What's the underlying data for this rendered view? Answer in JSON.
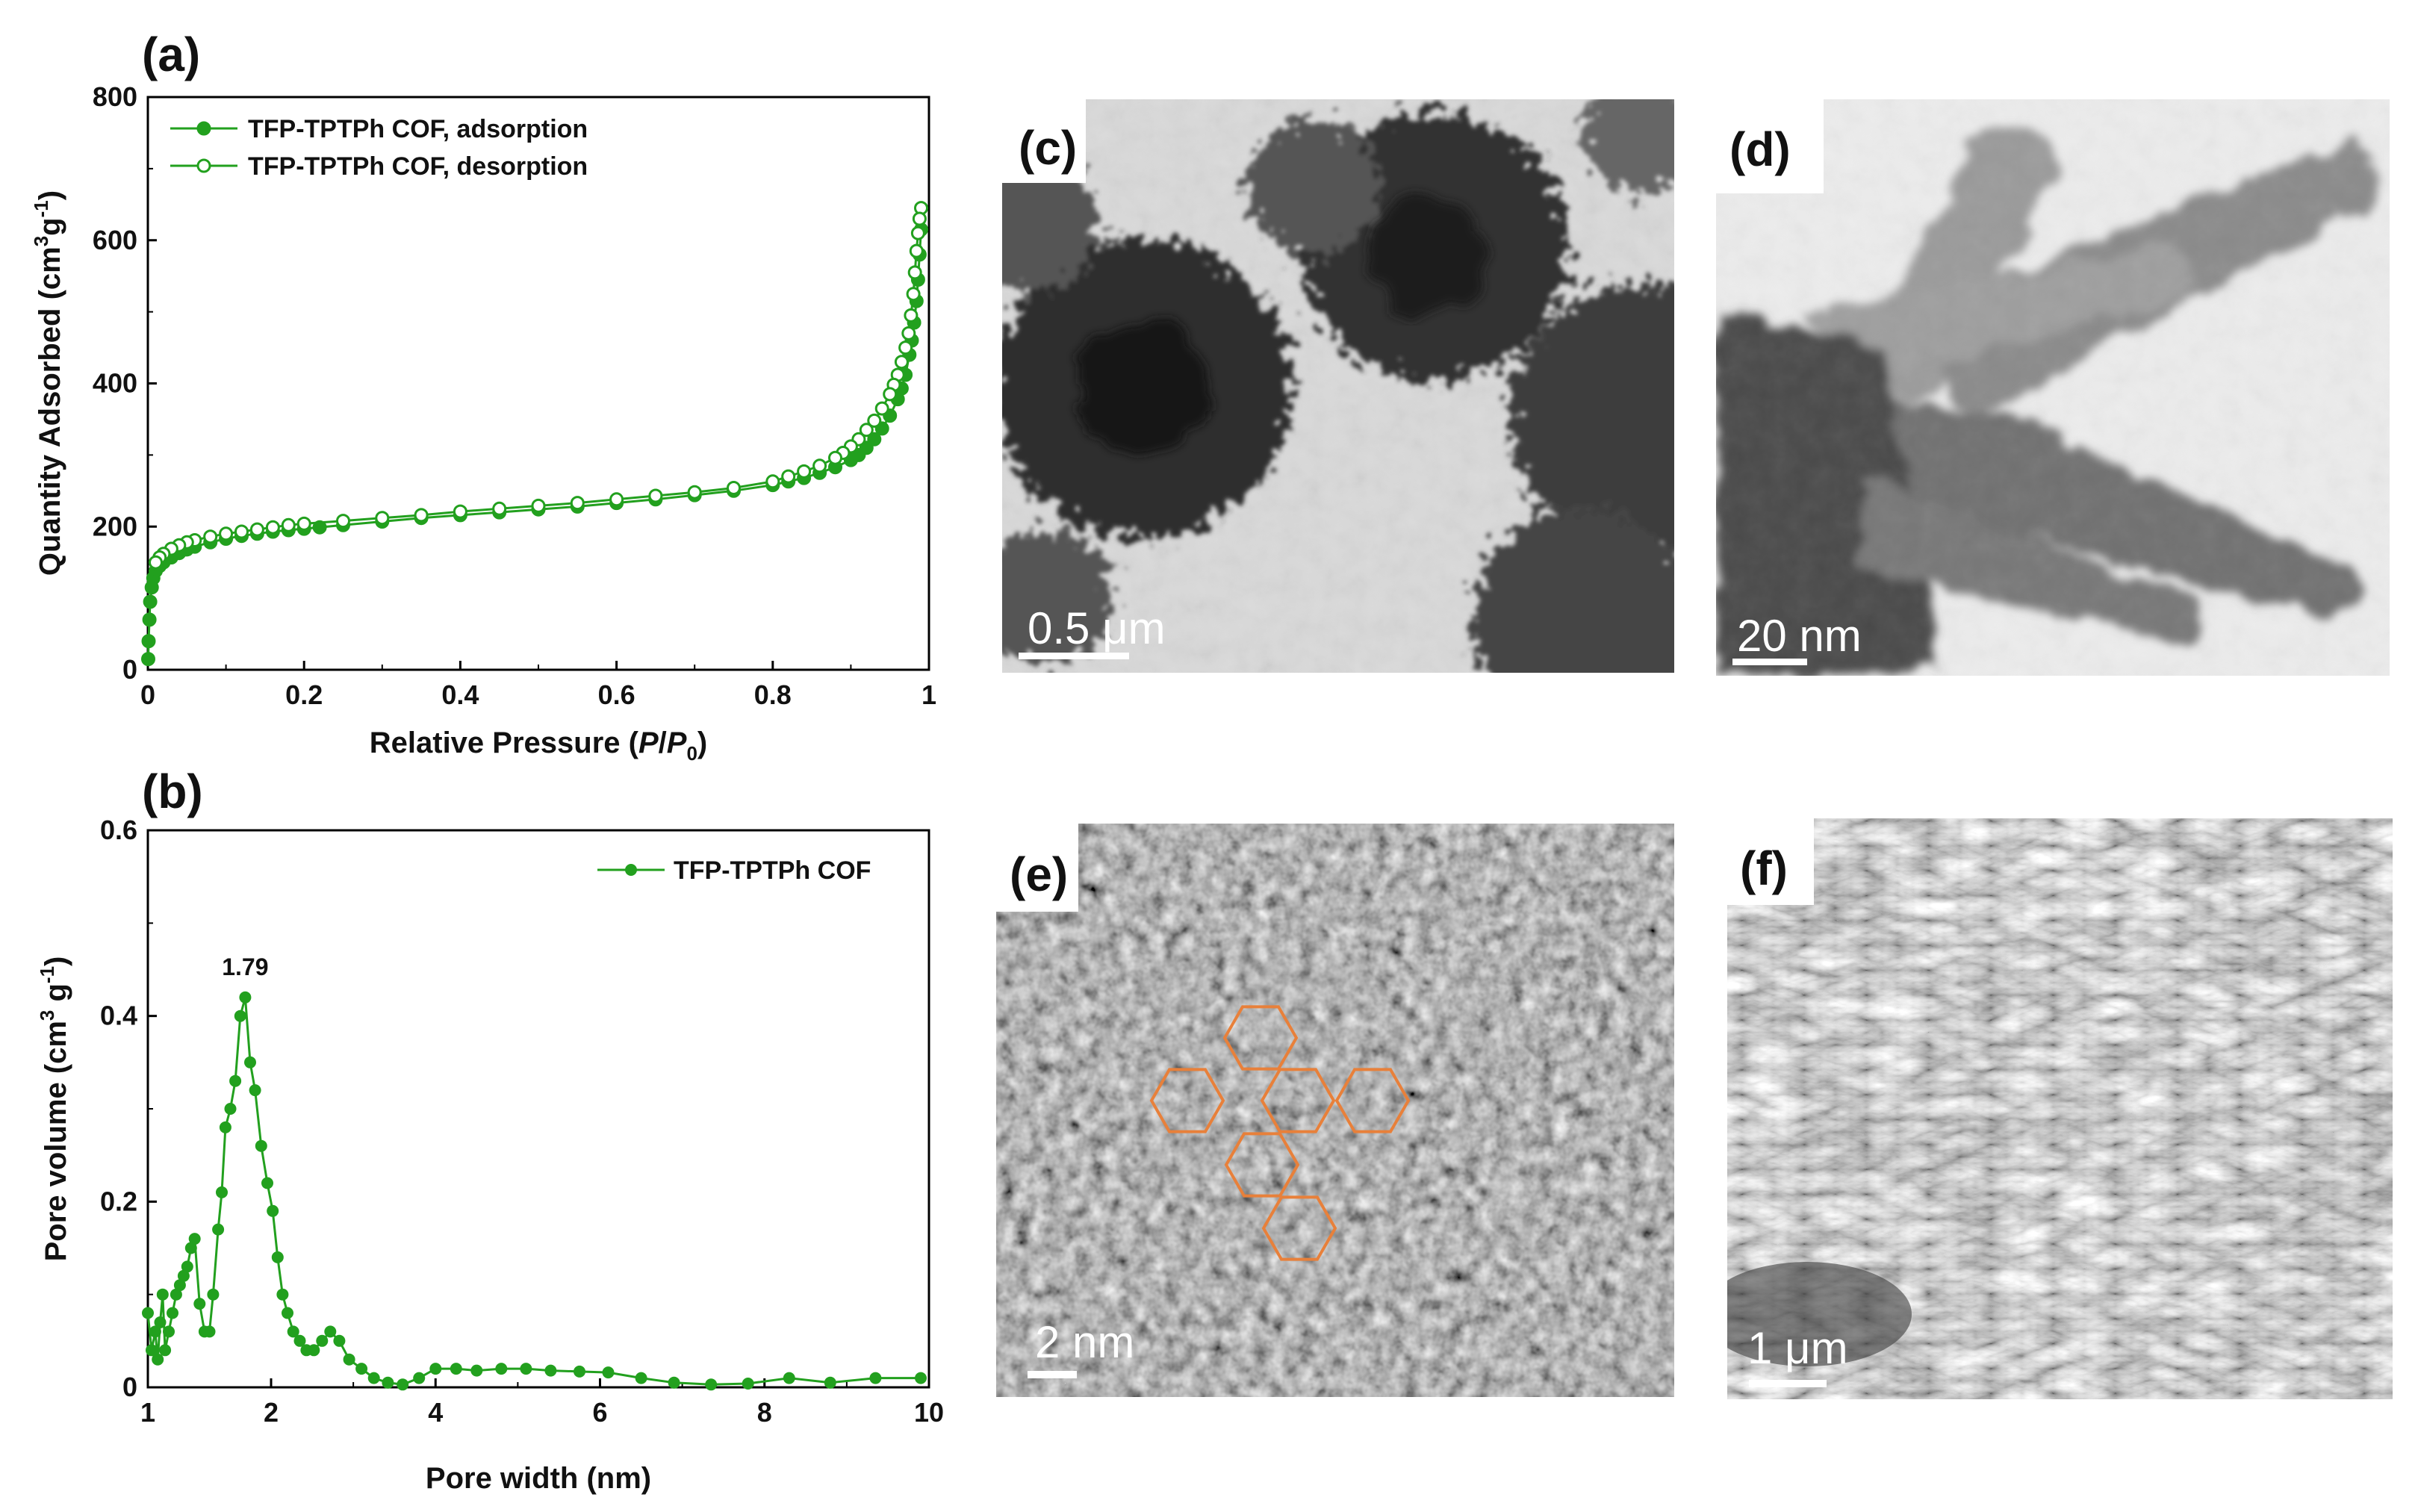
{
  "chart_data": [
    {
      "panel": "(a)",
      "type": "line",
      "xlabel_main": "Relative Pressure (",
      "xlabel_italic": "P",
      "xlabel_slash": "/",
      "xlabel_p0": "P",
      "xlabel_sub": "0",
      "xlabel_close": ")",
      "ylabel_main": "Quantity Adsorbed (cm",
      "ylabel_sup3": "3",
      "ylabel_g": "g",
      "ylabel_sup": "-1",
      "ylabel_close": ")",
      "xlim": [
        0,
        1
      ],
      "ylim": [
        0,
        800
      ],
      "xticks": [
        "0",
        "0.2",
        "0.4",
        "0.6",
        "0.8",
        "1"
      ],
      "yticks": [
        "0",
        "200",
        "400",
        "600",
        "800"
      ],
      "legend_position": "top-left",
      "color": "#22a01e",
      "series": [
        {
          "name": "TFP-TPTPh COF, adsorption",
          "marker": "filled-circle",
          "x": [
            0.0005,
            0.001,
            0.002,
            0.003,
            0.005,
            0.007,
            0.01,
            0.015,
            0.02,
            0.03,
            0.04,
            0.05,
            0.06,
            0.08,
            0.1,
            0.12,
            0.14,
            0.16,
            0.18,
            0.2,
            0.22,
            0.25,
            0.3,
            0.35,
            0.4,
            0.45,
            0.5,
            0.55,
            0.6,
            0.65,
            0.7,
            0.75,
            0.8,
            0.82,
            0.84,
            0.86,
            0.88,
            0.9,
            0.91,
            0.92,
            0.93,
            0.94,
            0.95,
            0.96,
            0.965,
            0.97,
            0.975,
            0.978,
            0.981,
            0.984,
            0.986,
            0.988,
            0.99
          ],
          "y": [
            15,
            40,
            70,
            95,
            115,
            128,
            138,
            145,
            150,
            157,
            163,
            168,
            172,
            178,
            183,
            187,
            190,
            193,
            195,
            197,
            199,
            202,
            207,
            212,
            216,
            220,
            224,
            228,
            233,
            238,
            244,
            250,
            258,
            263,
            268,
            275,
            283,
            293,
            300,
            310,
            322,
            337,
            355,
            378,
            393,
            412,
            440,
            460,
            485,
            515,
            545,
            580,
            615
          ]
        },
        {
          "name": "TFP-TPTPh COF, desorption",
          "marker": "open-circle",
          "x": [
            0.99,
            0.988,
            0.986,
            0.984,
            0.982,
            0.98,
            0.977,
            0.974,
            0.97,
            0.965,
            0.96,
            0.955,
            0.95,
            0.94,
            0.93,
            0.92,
            0.91,
            0.9,
            0.89,
            0.88,
            0.86,
            0.84,
            0.82,
            0.8,
            0.75,
            0.7,
            0.65,
            0.6,
            0.55,
            0.5,
            0.45,
            0.4,
            0.35,
            0.3,
            0.25,
            0.2,
            0.18,
            0.16,
            0.14,
            0.12,
            0.1,
            0.08,
            0.06,
            0.05,
            0.04,
            0.03,
            0.02,
            0.015,
            0.01
          ],
          "y": [
            645,
            630,
            610,
            585,
            555,
            525,
            495,
            470,
            450,
            430,
            412,
            398,
            385,
            365,
            348,
            335,
            322,
            312,
            303,
            296,
            285,
            277,
            270,
            263,
            254,
            248,
            243,
            238,
            233,
            229,
            225,
            221,
            216,
            212,
            208,
            204,
            202,
            199,
            196,
            193,
            190,
            186,
            181,
            178,
            174,
            169,
            162,
            157,
            150
          ]
        }
      ]
    },
    {
      "panel": "(b)",
      "type": "line",
      "xlabel": "Pore width (nm)",
      "ylabel_main": "Pore volume (cm",
      "ylabel_sup3": "3",
      "ylabel_g": " g",
      "ylabel_sup": "-1",
      "ylabel_close": ")",
      "xlim": [
        1,
        10
      ],
      "ylim": [
        0,
        0.6
      ],
      "xticks": [
        "1",
        "2",
        "4",
        "6",
        "8",
        "10"
      ],
      "xtick_values": [
        1,
        2,
        4,
        6,
        8,
        10
      ],
      "yticks": [
        "0",
        "0.2",
        "0.4",
        "0.6"
      ],
      "legend_position": "top-right",
      "annotation": "1.79",
      "annotation_x": 1.79,
      "annotation_y": 0.42,
      "color": "#22a01e",
      "series": [
        {
          "name": "TFP-TPTPh COF",
          "marker": "filled-circle",
          "x": [
            1.0,
            1.03,
            1.06,
            1.08,
            1.1,
            1.12,
            1.14,
            1.17,
            1.2,
            1.23,
            1.26,
            1.29,
            1.32,
            1.35,
            1.38,
            1.42,
            1.46,
            1.5,
            1.53,
            1.57,
            1.6,
            1.63,
            1.67,
            1.71,
            1.75,
            1.79,
            1.83,
            1.87,
            1.92,
            1.97,
            2.02,
            2.08,
            2.14,
            2.2,
            2.27,
            2.35,
            2.43,
            2.52,
            2.62,
            2.72,
            2.83,
            2.95,
            3.1,
            3.25,
            3.42,
            3.6,
            3.8,
            4.0,
            4.25,
            4.5,
            4.8,
            5.1,
            5.4,
            5.75,
            6.1,
            6.5,
            6.9,
            7.35,
            7.8,
            8.3,
            8.8,
            9.35,
            9.9
          ],
          "y": [
            0.08,
            0.04,
            0.06,
            0.03,
            0.07,
            0.1,
            0.04,
            0.06,
            0.08,
            0.1,
            0.11,
            0.12,
            0.13,
            0.15,
            0.16,
            0.09,
            0.06,
            0.06,
            0.1,
            0.17,
            0.21,
            0.28,
            0.3,
            0.33,
            0.4,
            0.42,
            0.35,
            0.32,
            0.26,
            0.22,
            0.19,
            0.14,
            0.1,
            0.08,
            0.06,
            0.05,
            0.04,
            0.04,
            0.05,
            0.06,
            0.05,
            0.03,
            0.02,
            0.01,
            0.005,
            0.003,
            0.01,
            0.02,
            0.02,
            0.018,
            0.02,
            0.02,
            0.018,
            0.017,
            0.016,
            0.01,
            0.005,
            0.003,
            0.004,
            0.01,
            0.005,
            0.01,
            0.01
          ]
        }
      ]
    }
  ],
  "images": {
    "c": {
      "label": "(c)",
      "scale": "0.5 μm"
    },
    "d": {
      "label": "(d)",
      "scale": "20 nm"
    },
    "e": {
      "label": "(e)",
      "scale": "2 nm"
    },
    "f": {
      "label": "(f)",
      "scale": "1 μm"
    }
  },
  "colors": {
    "series": "#22a01e",
    "hexagon": "#e8803a"
  }
}
